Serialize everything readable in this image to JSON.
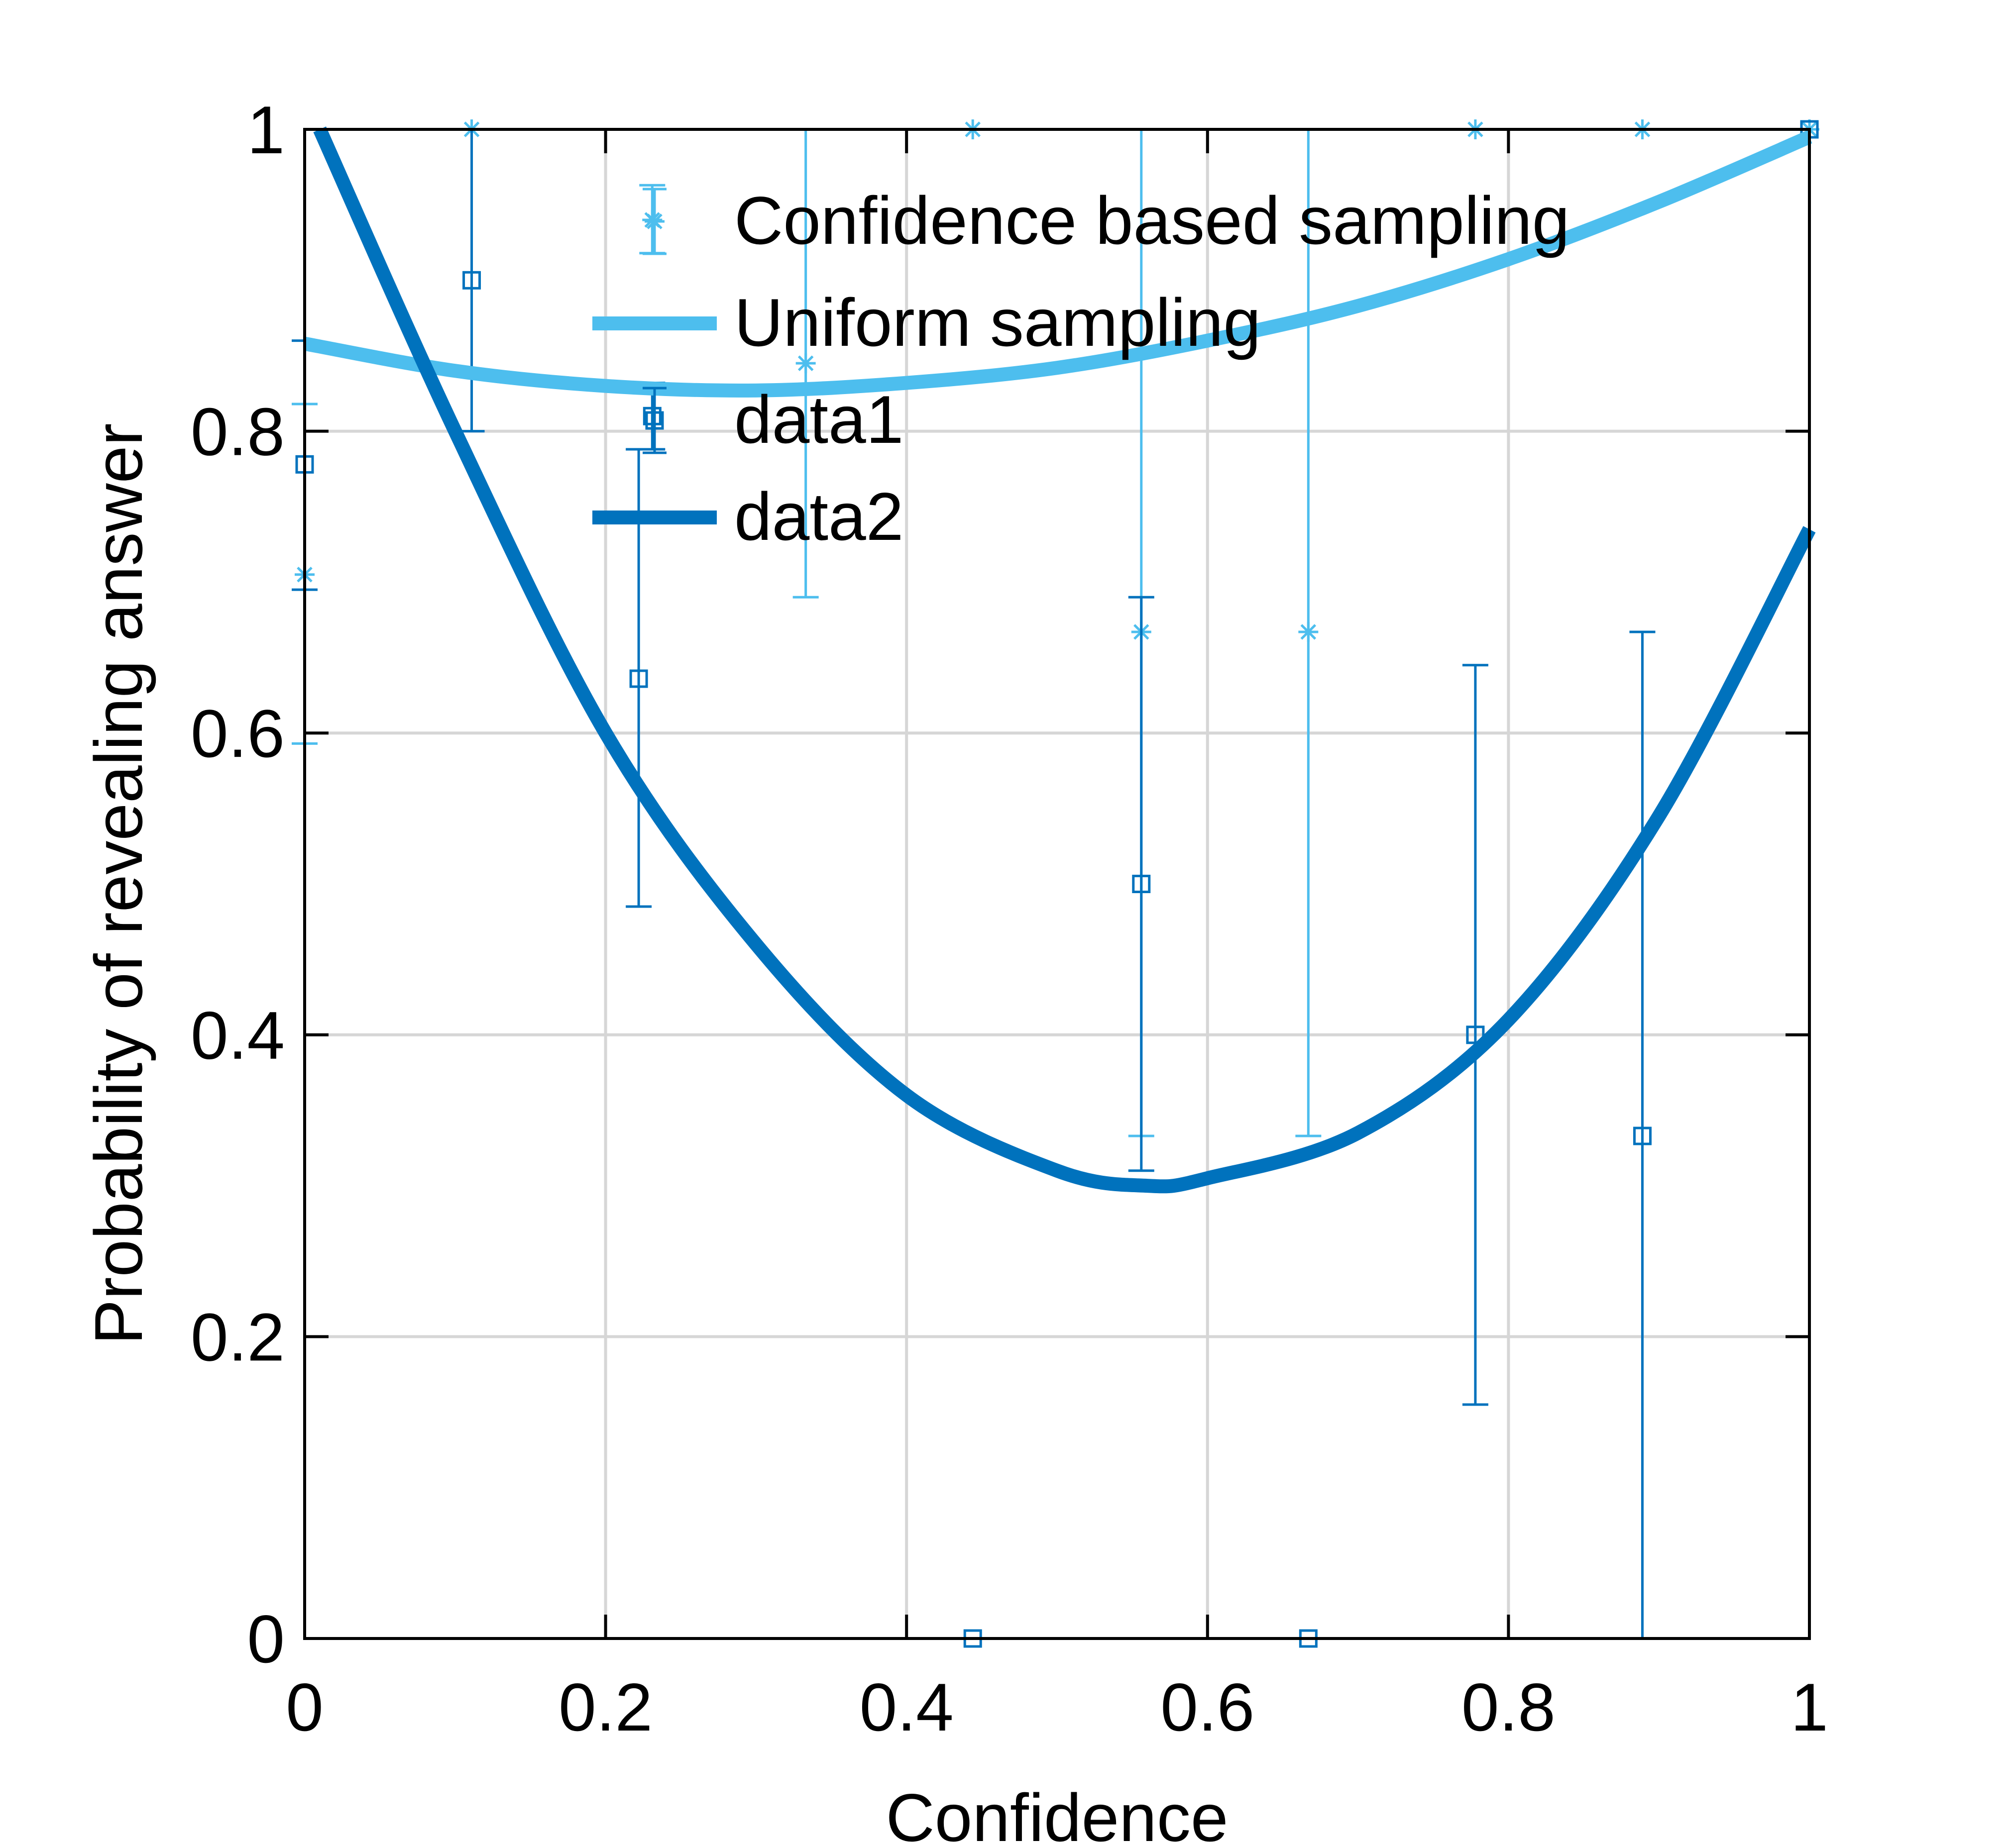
{
  "chart_data": {
    "type": "scatter",
    "xlabel": "Confidence",
    "ylabel": "Probability of revealing answer",
    "xlim": [
      0,
      1
    ],
    "ylim": [
      0,
      1
    ],
    "xticks": [
      "0",
      "0.2",
      "0.4",
      "0.6",
      "0.8",
      "1"
    ],
    "yticks": [
      "0",
      "0.2",
      "0.4",
      "0.6",
      "0.8",
      "1"
    ],
    "grid": true,
    "box": true,
    "legend_position": "top-right",
    "colors": {
      "light": "#4DBEEE",
      "dark": "#0072BD"
    },
    "series": [
      {
        "name": "Confidence based sampling",
        "kind": "errorbar",
        "marker": "asterisk",
        "color": "#4DBEEE",
        "x": [
          0.0,
          0.111,
          0.231,
          0.333,
          0.444,
          0.556,
          0.667,
          0.778,
          0.889,
          1.0
        ],
        "y": [
          0.705,
          1.0,
          0.94,
          0.845,
          1.0,
          0.667,
          0.667,
          1.0,
          1.0,
          1.0
        ],
        "lower": [
          0.593,
          1.0,
          0.918,
          0.69,
          1.0,
          0.333,
          0.333,
          1.0,
          1.0,
          1.0
        ],
        "upper": [
          0.818,
          1.0,
          0.963,
          1.0,
          1.0,
          1.0,
          1.0,
          1.0,
          1.0,
          1.0
        ]
      },
      {
        "name": "Uniform sampling",
        "kind": "line",
        "color": "#4DBEEE",
        "x": [
          0.0,
          0.1,
          0.2,
          0.3,
          0.4,
          0.5,
          0.6,
          0.7,
          0.8,
          0.9,
          1.0
        ],
        "y": [
          0.858,
          0.84,
          0.83,
          0.827,
          0.832,
          0.842,
          0.86,
          0.883,
          0.914,
          0.952,
          0.995
        ]
      },
      {
        "name": "data1",
        "kind": "errorbar",
        "marker": "square",
        "color": "#0072BD",
        "x": [
          0.0,
          0.111,
          0.222,
          0.231,
          0.444,
          0.556,
          0.667,
          0.778,
          0.889,
          1.0
        ],
        "y": [
          0.778,
          0.9,
          0.636,
          0.81,
          0.0,
          0.5,
          0.0,
          0.4,
          0.333,
          1.0
        ],
        "lower": [
          0.695,
          0.8,
          0.485,
          0.788,
          0.0,
          0.31,
          0.0,
          0.155,
          0.0,
          1.0
        ],
        "upper": [
          0.86,
          1.0,
          0.788,
          0.832,
          0.0,
          0.69,
          0.0,
          0.645,
          0.667,
          1.0
        ]
      },
      {
        "name": "data2",
        "kind": "line",
        "color": "#0072BD",
        "x": [
          0.01,
          0.1,
          0.2,
          0.3,
          0.4,
          0.5,
          0.56,
          0.6,
          0.7,
          0.8,
          0.9,
          1.0
        ],
        "y": [
          1.0,
          0.8,
          0.6,
          0.46,
          0.36,
          0.31,
          0.3,
          0.305,
          0.335,
          0.41,
          0.545,
          0.735
        ]
      }
    ]
  }
}
